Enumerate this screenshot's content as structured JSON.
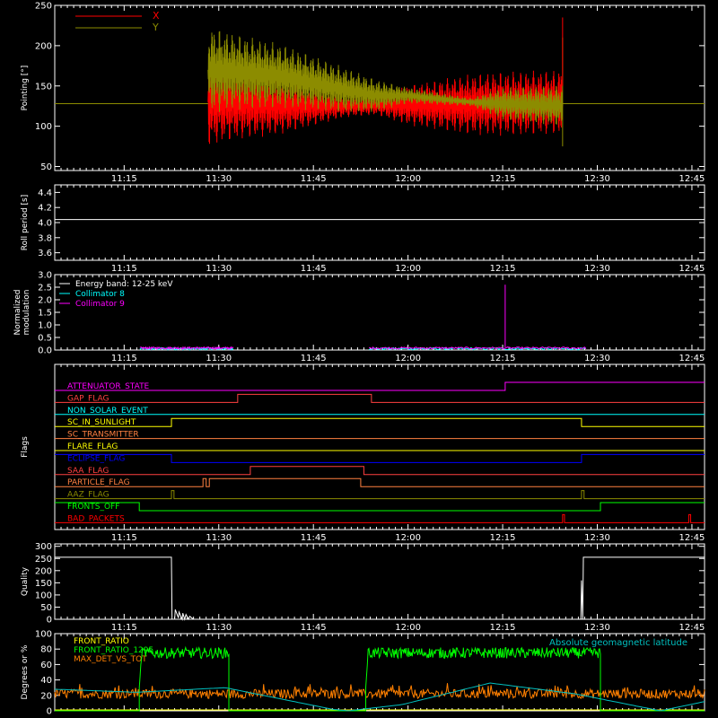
{
  "x_axis": {
    "tick_labels": [
      "11:15",
      "11:30",
      "11:45",
      "12:00",
      "12:15",
      "12:30",
      "12:45"
    ],
    "tick_minutes": [
      675,
      690,
      705,
      720,
      735,
      750,
      765
    ],
    "range_minutes": [
      664,
      767
    ]
  },
  "colors": {
    "background": "#000000",
    "axis": "#ffffff",
    "red": "#ff0000",
    "olive": "#8c8c00",
    "cyan": "#00ffff",
    "magenta": "#ff00ff",
    "green": "#00ff00",
    "orange": "#ff8000",
    "yellow": "#ffff00",
    "blue": "#0000ff"
  },
  "chart_data": [
    {
      "type": "line",
      "id": "pointing",
      "ylabel": "Pointing [°]",
      "ylim": [
        45,
        250
      ],
      "yticks": [
        50,
        100,
        150,
        200,
        250
      ],
      "legend": "top-left",
      "series": [
        {
          "name": "X",
          "color": "#ff0000",
          "samples": [
            [
              664,
              128
            ],
            [
              688.3,
              128
            ],
            [
              688.3,
              128
            ],
            [
              693,
              128
            ],
            [
              700,
              128
            ],
            [
              710,
              128
            ],
            [
              720,
              128
            ],
            [
              730,
              128
            ],
            [
              737,
              128
            ],
            [
              744.5,
              128
            ],
            [
              744.5,
              128
            ],
            [
              767,
              128
            ]
          ],
          "center": [
            [
              688.3,
              130
            ],
            [
              692,
              130
            ],
            [
              700,
              126
            ],
            [
              710,
              125
            ],
            [
              715,
              126
            ],
            [
              720,
              126
            ],
            [
              730,
              127
            ],
            [
              735,
              128
            ],
            [
              744.5,
              130
            ]
          ],
          "amplitude": [
            [
              688.3,
              55
            ],
            [
              692,
              48
            ],
            [
              700,
              36
            ],
            [
              710,
              14
            ],
            [
              715,
              12
            ],
            [
              720,
              25
            ],
            [
              730,
              38
            ],
            [
              735,
              40
            ],
            [
              744.5,
              40
            ]
          ]
        },
        {
          "name": "Y",
          "color": "#8c8c00",
          "samples": [
            [
              664,
              128
            ],
            [
              688.3,
              128
            ],
            [
              744.5,
              128
            ],
            [
              767,
              128
            ]
          ],
          "center": [
            [
              688.3,
              170
            ],
            [
              692,
              168
            ],
            [
              700,
              162
            ],
            [
              710,
              145
            ],
            [
              715,
              138
            ],
            [
              720,
              138
            ],
            [
              730,
              130
            ],
            [
              735,
              128
            ],
            [
              744.5,
              125
            ]
          ],
          "amplitude": [
            [
              688.3,
              55
            ],
            [
              692,
              48
            ],
            [
              700,
              40
            ],
            [
              710,
              28
            ],
            [
              715,
              20
            ],
            [
              720,
              10
            ],
            [
              730,
              5
            ],
            [
              735,
              20
            ],
            [
              744.5,
              25
            ]
          ]
        }
      ]
    },
    {
      "type": "line",
      "id": "roll_period",
      "ylabel": "Roll period [s]",
      "ylim": [
        3.5,
        4.5
      ],
      "yticks": [
        3.6,
        3.8,
        4.0,
        4.2,
        4.4
      ],
      "tick_format": "1",
      "series": [
        {
          "name": "",
          "color": "#ffffff",
          "x": [
            664,
            767
          ],
          "y": [
            4.04,
            4.04
          ]
        }
      ]
    },
    {
      "type": "line",
      "id": "modulation",
      "ylabel": "Normalized modulation",
      "ylim": [
        0,
        3
      ],
      "yticks": [
        0.0,
        0.5,
        1.0,
        1.5,
        2.0,
        2.5,
        3.0
      ],
      "tick_format": "1",
      "legend": "top-left",
      "annotation": "Energy band: 12-25 keV",
      "series": [
        {
          "name": "Collimator 8",
          "color": "#00ffff",
          "segments": [
            [
              677.5,
              692.3
            ],
            [
              713.8,
              748.2
            ]
          ],
          "level": 0.05
        },
        {
          "name": "Collimator 9",
          "color": "#ff00ff",
          "segments": [
            [
              677.5,
              692.3
            ],
            [
              713.8,
              748.2
            ]
          ],
          "level": 0.08,
          "spike_x": 735.4,
          "spike_y": 2.6
        }
      ]
    },
    {
      "type": "step",
      "id": "flags",
      "ylabel": "Flags",
      "flags": [
        {
          "name": "ATTENUATOR_STATE",
          "color": "#ff00ff",
          "steps": [
            [
              664,
              0
            ],
            [
              735.4,
              1
            ],
            [
              767,
              1
            ]
          ]
        },
        {
          "name": "GAP_FLAG",
          "color": "#ff4040",
          "steps": [
            [
              664,
              0
            ],
            [
              693,
              1
            ],
            [
              714.2,
              0
            ],
            [
              767,
              0
            ]
          ]
        },
        {
          "name": "NON_SOLAR_EVENT",
          "color": "#00ffff",
          "steps": [
            [
              664,
              0
            ],
            [
              767,
              0
            ]
          ]
        },
        {
          "name": "SC_IN_SUNLIGHT",
          "color": "#ffff00",
          "steps": [
            [
              664,
              0
            ],
            [
              682.5,
              1
            ],
            [
              747.5,
              0
            ],
            [
              767,
              0
            ]
          ]
        },
        {
          "name": "SC_TRANSMITTER",
          "color": "#ff8040",
          "steps": [
            [
              664,
              0
            ],
            [
              767,
              0
            ]
          ]
        },
        {
          "name": "FLARE_FLAG",
          "color": "#ffff00",
          "steps": [
            [
              664,
              0
            ],
            [
              767,
              0
            ]
          ]
        },
        {
          "name": "ECLIPSE_FLAG",
          "color": "#0000ff",
          "steps": [
            [
              664,
              1
            ],
            [
              682.5,
              0
            ],
            [
              747.5,
              1
            ],
            [
              767,
              1
            ]
          ]
        },
        {
          "name": "SAA_FLAG",
          "color": "#ff4040",
          "steps": [
            [
              664,
              0
            ],
            [
              695,
              1
            ],
            [
              713,
              0
            ],
            [
              767,
              0
            ]
          ]
        },
        {
          "name": "PARTICLE_FLAG",
          "color": "#ff8040",
          "steps": [
            [
              664,
              0
            ],
            [
              687.5,
              1
            ],
            [
              688,
              0
            ],
            [
              688.5,
              1
            ],
            [
              712.5,
              0
            ],
            [
              767,
              0
            ]
          ]
        },
        {
          "name": "AAZ_FLAG",
          "color": "#8c8c00",
          "steps": [
            [
              664,
              0
            ],
            [
              682.5,
              1
            ],
            [
              682.9,
              0
            ],
            [
              747.5,
              1
            ],
            [
              747.9,
              0
            ],
            [
              767,
              0
            ]
          ]
        },
        {
          "name": "FRONTS_OFF",
          "color": "#00ff00",
          "steps": [
            [
              664,
              1
            ],
            [
              677.4,
              0
            ],
            [
              750.5,
              1
            ],
            [
              767,
              1
            ]
          ]
        },
        {
          "name": "BAD_PACKETS",
          "color": "#ff0000",
          "steps": [
            [
              664,
              0
            ],
            [
              744.5,
              1
            ],
            [
              744.8,
              0
            ],
            [
              764.5,
              1
            ],
            [
              764.8,
              0
            ],
            [
              767,
              0
            ]
          ]
        }
      ]
    },
    {
      "type": "line",
      "id": "quality",
      "ylabel": "Quality",
      "ylim": [
        0,
        310
      ],
      "yticks": [
        0,
        50,
        100,
        150,
        200,
        250,
        300
      ],
      "series": [
        {
          "name": "",
          "color": "#ffffff",
          "x": [
            664,
            682.5,
            682.6,
            683.0,
            683.1,
            683.6,
            683.7,
            684.2,
            684.3,
            684.6,
            684.8,
            685.2,
            685.4,
            686.0,
            686.5,
            747.4,
            747.5,
            747.7,
            747.8,
            767
          ],
          "y": [
            255,
            255,
            0,
            0,
            40,
            5,
            30,
            0,
            25,
            0,
            20,
            0,
            12,
            0,
            0,
            0,
            160,
            0,
            255,
            255
          ]
        }
      ]
    },
    {
      "type": "line",
      "id": "front_ratio",
      "ylabel": "Degrees or %",
      "ylim": [
        0,
        100
      ],
      "yticks": [
        0,
        20,
        40,
        60,
        80,
        100
      ],
      "legend": "top-left",
      "annotation": "Absolute geomagnetic latitude",
      "series": [
        {
          "name": "FRONT_RATIO",
          "color": "#ffff00",
          "x": [
            664,
            767
          ],
          "y": [
            0,
            0
          ]
        },
        {
          "name": "FRONT_RATIO_1295",
          "color": "#00ff00",
          "segments": [
            [
              677.4,
              691.6
            ],
            [
              713.3,
              750.5
            ]
          ],
          "level": 75,
          "edge_low": 30
        },
        {
          "name": "MAX_DET_VS_TOT",
          "color": "#ff8000",
          "level": 22,
          "noise": 6
        },
        {
          "name": "Absolute geomagnetic latitude",
          "color": "#00c0c0",
          "x": [
            664,
            677,
            691,
            708,
            710.5,
            719,
            733,
            746.5,
            760,
            767
          ],
          "y": [
            28,
            24,
            30,
            2,
            0,
            8,
            36,
            22,
            0,
            12
          ]
        }
      ]
    }
  ]
}
